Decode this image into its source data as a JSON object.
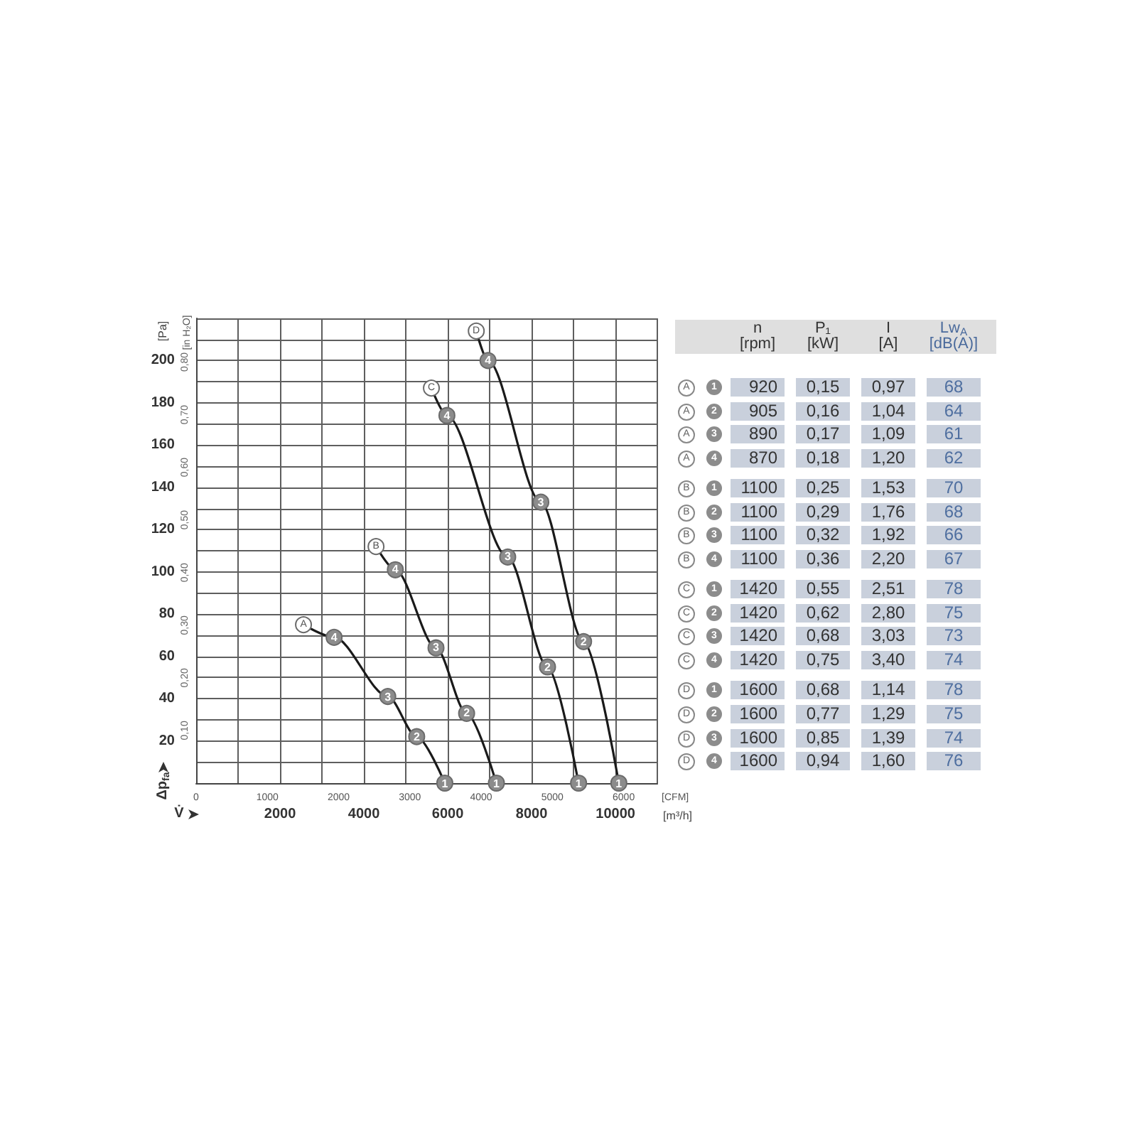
{
  "chart_data": [
    {
      "type": "line",
      "xlabel": "[m³/h]",
      "x2label": "[CFM]",
      "ylabel": "[Pa]",
      "y2label": "[in H₂O]",
      "annotations": [
        "V̇",
        "Δp$_{fa}$",
        {
          "text": "4",
          "x": 3290,
          "y": 69
        },
        {
          "text": "3",
          "x": 4570,
          "y": 41
        },
        {
          "text": "2",
          "x": 5260,
          "y": 22
        },
        {
          "text": "1",
          "x": 5930,
          "y": 0
        },
        {
          "text": "4",
          "x": 4750,
          "y": 101
        },
        {
          "text": "3",
          "x": 5720,
          "y": 64
        },
        {
          "text": "2",
          "x": 6450,
          "y": 33
        },
        {
          "text": "1",
          "x": 7160,
          "y": 0
        },
        {
          "text": "4",
          "x": 5980,
          "y": 174
        },
        {
          "text": "3",
          "x": 7430,
          "y": 107
        },
        {
          "text": "2",
          "x": 8380,
          "y": 55
        },
        {
          "text": "1",
          "x": 9120,
          "y": 0
        },
        {
          "text": "4",
          "x": 6960,
          "y": 200
        },
        {
          "text": "3",
          "x": 8220,
          "y": 133
        },
        {
          "text": "2",
          "x": 9240,
          "y": 67
        },
        {
          "text": "1",
          "x": 10080,
          "y": 0
        }
      ],
      "xlim": [
        0,
        11000
      ],
      "xticks": [
        {
          "value": 1000,
          "label": null
        },
        2000,
        {
          "value": 3000,
          "label": null
        },
        4000,
        {
          "value": 5000,
          "label": null
        },
        6000,
        {
          "value": 7000,
          "label": null
        },
        8000,
        {
          "value": 9000,
          "label": null
        },
        10000,
        {
          "value": 11000,
          "label": null
        }
      ],
      "x2lim": [
        0,
        6474
      ],
      "x2ticks": [
        0,
        1000,
        2000,
        3000,
        4000,
        5000,
        6000
      ],
      "ylim": [
        0,
        220
      ],
      "yticks": [
        {
          "value": 10,
          "label": null
        },
        20,
        {
          "value": 30,
          "label": null
        },
        40,
        {
          "value": 50,
          "label": null
        },
        60,
        {
          "value": 70,
          "label": null
        },
        80,
        {
          "value": 90,
          "label": null
        },
        100,
        {
          "value": 110,
          "label": null
        },
        120,
        {
          "value": 130,
          "label": null
        },
        140,
        {
          "value": 150,
          "label": null
        },
        160,
        {
          "value": 170,
          "label": null
        },
        180,
        {
          "value": 190,
          "label": null
        },
        200,
        {
          "value": 210,
          "label": null
        },
        {
          "value": 220,
          "label": null
        }
      ],
      "y2lim": [
        0,
        0.883
      ],
      "y2ticks": [
        {
          "value": 0.1,
          "label": "0,10"
        },
        {
          "value": 0.2,
          "label": "0,20"
        },
        {
          "value": 0.3,
          "label": "0,30"
        },
        {
          "value": 0.4,
          "label": "0,40"
        },
        {
          "value": 0.5,
          "label": "0,50"
        },
        {
          "value": 0.6,
          "label": "0,60"
        },
        {
          "value": 0.7,
          "label": "0,70"
        },
        {
          "value": 0.8,
          "label": "0,80"
        }
      ],
      "grid": true,
      "marker": "circle",
      "line_style": "solid",
      "series": [
        {
          "name": "A",
          "color": "#1a1a1a",
          "colors": [
            "#ffffff",
            "#8c8c8c",
            "#8c8c8c",
            "#8c8c8c",
            "#8c8c8c"
          ],
          "x": [
            2560,
            3290,
            4570,
            5260,
            5930
          ],
          "values": [
            75,
            69,
            41,
            22,
            0
          ]
        },
        {
          "name": "B",
          "color": "#1a1a1a",
          "colors": [
            "#ffffff",
            "#8c8c8c",
            "#8c8c8c",
            "#8c8c8c",
            "#8c8c8c"
          ],
          "x": [
            4290,
            4750,
            5720,
            6450,
            7160
          ],
          "values": [
            112,
            101,
            64,
            33,
            0
          ]
        },
        {
          "name": "C",
          "color": "#1a1a1a",
          "colors": [
            "#ffffff",
            "#8c8c8c",
            "#8c8c8c",
            "#8c8c8c",
            "#8c8c8c"
          ],
          "x": [
            5610,
            5980,
            7430,
            8380,
            9120
          ],
          "values": [
            187,
            174,
            107,
            55,
            0
          ]
        },
        {
          "name": "D",
          "color": "#1a1a1a",
          "colors": [
            "#ffffff",
            "#8c8c8c",
            "#8c8c8c",
            "#8c8c8c",
            "#8c8c8c"
          ],
          "x": [
            6680,
            6960,
            8220,
            9240,
            10080
          ],
          "values": [
            214,
            200,
            133,
            67,
            0
          ]
        }
      ]
    },
    {
      "type": "other",
      "categories": [
        "n [rpm]",
        "P₁ [kW]",
        "I [A]",
        "Lw$_{A}$ [dB(A)]"
      ],
      "y_categories": [
        "A",
        "A",
        "A",
        "A",
        "B",
        "B",
        "B",
        "B",
        "C",
        "C",
        "C",
        "C",
        "D",
        "D",
        "D",
        "D"
      ],
      "y2_categories": [
        "1",
        "2",
        "3",
        "4",
        "1",
        "2",
        "3",
        "4",
        "1",
        "2",
        "3",
        "4",
        "1",
        "2",
        "3",
        "4"
      ],
      "cell_labels": [
        [
          "920",
          "0,15",
          "0,97",
          "68"
        ],
        [
          "905",
          "0,16",
          "1,04",
          "64"
        ],
        [
          "890",
          "0,17",
          "1,09",
          "61"
        ],
        [
          "870",
          "0,18",
          "1,20",
          "62"
        ],
        [
          "1100",
          "0,25",
          "1,53",
          "70"
        ],
        [
          "1100",
          "0,29",
          "1,76",
          "68"
        ],
        [
          "1100",
          "0,32",
          "1,92",
          "66"
        ],
        [
          "1100",
          "0,36",
          "2,20",
          "67"
        ],
        [
          "1420",
          "0,55",
          "2,51",
          "78"
        ],
        [
          "1420",
          "0,62",
          "2,80",
          "75"
        ],
        [
          "1420",
          "0,68",
          "3,03",
          "73"
        ],
        [
          "1420",
          "0,75",
          "3,40",
          "74"
        ],
        [
          "1600",
          "0,68",
          "1,14",
          "78"
        ],
        [
          "1600",
          "0,77",
          "1,29",
          "75"
        ],
        [
          "1600",
          "0,85",
          "1,39",
          "74"
        ],
        [
          "1600",
          "0,94",
          "1,60",
          "76"
        ]
      ]
    }
  ]
}
